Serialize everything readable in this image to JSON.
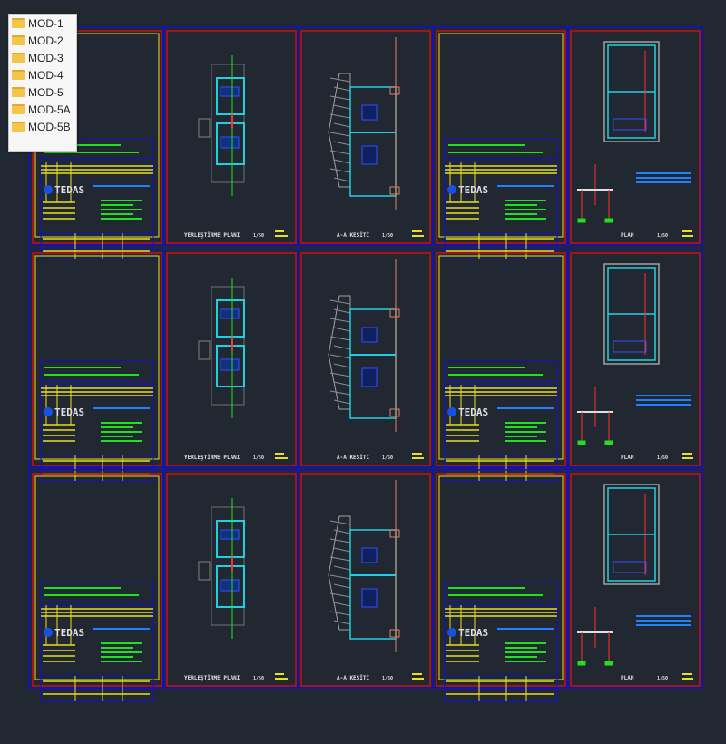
{
  "folders": [
    "MOD-1",
    "MOD-2",
    "MOD-3",
    "MOD-4",
    "MOD-5",
    "MOD-5A",
    "MOD-5B"
  ],
  "colors": {
    "background": "#222831",
    "sheet_outer": "#1010c8",
    "sheet_inner": "#c81010",
    "title_frame": "#e8e020",
    "text_green": "#20e020",
    "text_blue": "#2080ff",
    "wall_cyan": "#20d0e0"
  },
  "logo_text": "TEDAS",
  "sheet_titles": {
    "layout": "YERLEŞTİRME PLANI",
    "section": "A-A KESİTİ",
    "plan": "PLAN",
    "scale": "1/50"
  },
  "rows": [
    [
      "title",
      "layout",
      "section",
      "title",
      "plan"
    ],
    [
      "title",
      "layout",
      "section",
      "title",
      "plan"
    ],
    [
      "title",
      "layout",
      "section",
      "title",
      "plan"
    ]
  ]
}
